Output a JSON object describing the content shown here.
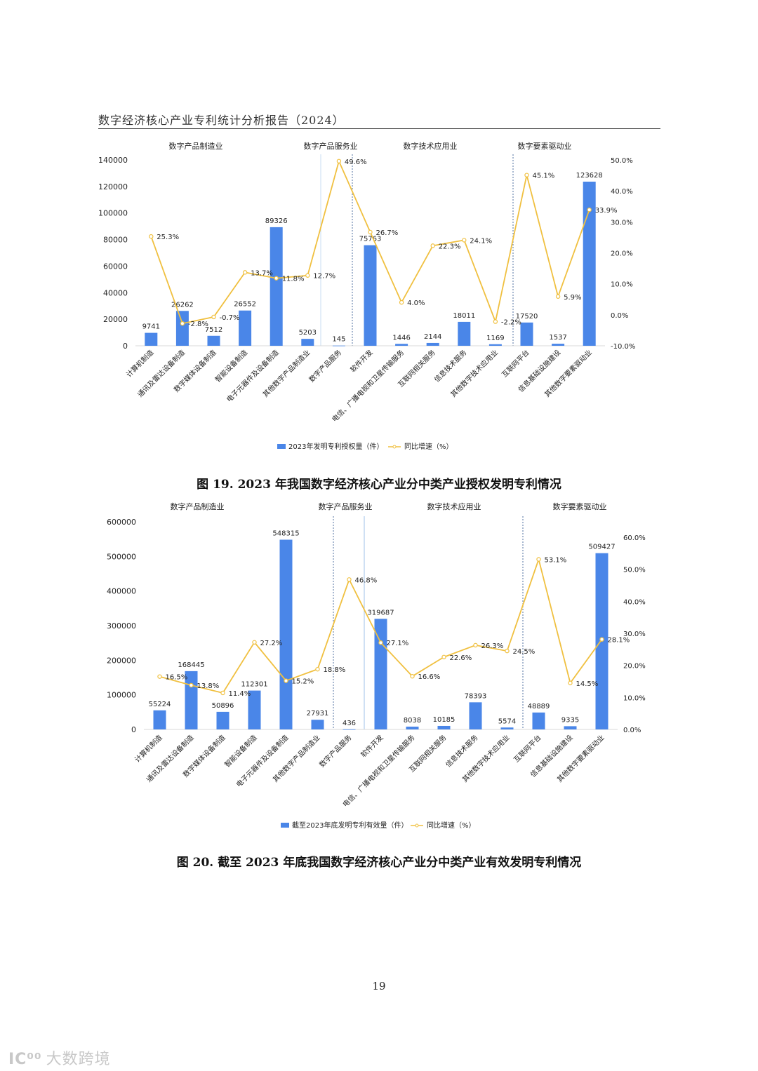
{
  "header": {
    "title": "数字经济核心产业专利统计分析报告（2024）"
  },
  "page_number": "19",
  "watermark": {
    "logo": "IC⁰⁰",
    "text": "大数跨境"
  },
  "colors": {
    "bar": "#4a86e8",
    "line": "#f0c040",
    "marker_fill": "#ffffff",
    "grid_sep": "#7f9fd0"
  },
  "chart_data": [
    {
      "type": "bar",
      "caption": "图 19. 2023 年我国数字经济核心产业分中类产业授权发明专利情况",
      "groups": [
        "数字产品制造业",
        "数字产品服务业",
        "数字技术应用业",
        "数字要素驱动业"
      ],
      "categories": [
        "计算机制造",
        "通讯及雷达设备制造",
        "数字媒体设备制造",
        "智能设备制造",
        "电子元器件及设备制造",
        "其他数字产品制造业",
        "数字产品服务",
        "软件开发",
        "电信、广播电视和卫星传输服务",
        "互联网相关服务",
        "信息技术服务",
        "其他数字技术应用业",
        "互联网平台",
        "信息基础设施建设",
        "其他数字要素驱动业"
      ],
      "series": [
        {
          "name": "2023年发明专利授权量（件）",
          "type": "bar",
          "axis": "left",
          "values": [
            9741,
            26262,
            7512,
            26552,
            89326,
            5203,
            145,
            75763,
            1446,
            2144,
            18011,
            1169,
            17520,
            1537,
            123628
          ],
          "labels": [
            "9741",
            "26262",
            "7512",
            "26552",
            "89326",
            "5203",
            "145",
            "75763",
            "1446",
            "2144",
            "18011",
            "1169",
            "17520",
            "1537",
            "123628"
          ]
        },
        {
          "name": "同比增速（%）",
          "type": "line",
          "axis": "right",
          "values": [
            25.3,
            -2.8,
            -0.7,
            13.7,
            11.8,
            12.7,
            49.6,
            26.7,
            4.0,
            22.3,
            24.1,
            -2.2,
            45.1,
            5.9,
            33.9
          ],
          "labels": [
            "25.3%",
            "-2.8%",
            "-0.7%",
            "13.7%",
            "11.8%",
            "12.7%",
            "49.6%",
            "26.7%",
            "4.0%",
            "22.3%",
            "24.1%",
            "-2.2%",
            "45.1%",
            "5.9%",
            "33.9%"
          ]
        }
      ],
      "left_axis": {
        "min": 0,
        "max": 140000,
        "ticks": [
          "0",
          "20000",
          "40000",
          "60000",
          "80000",
          "100000",
          "120000",
          "140000"
        ]
      },
      "right_axis": {
        "min": -10,
        "max": 50,
        "ticks": [
          "-10.0%",
          "0.0%",
          "10.0%",
          "20.0%",
          "30.0%",
          "40.0%",
          "50.0%"
        ]
      },
      "legend_position": "bottom"
    },
    {
      "type": "bar",
      "caption": "图 20. 截至 2023 年底我国数字经济核心产业分中类产业有效发明专利情况",
      "groups": [
        "数字产品制造业",
        "数字产品服务业",
        "数字技术应用业",
        "数字要素驱动业"
      ],
      "categories": [
        "计算机制造",
        "通讯及雷达设备制造",
        "数字媒体设备制造",
        "智能设备制造",
        "电子元器件及设备制造",
        "其他数字产品制造业",
        "数字产品服务",
        "软件开发",
        "电信、广播电视和卫星传输服务",
        "互联网相关服务",
        "信息技术服务",
        "其他数字技术应用业",
        "互联网平台",
        "信息基础设施建设",
        "其他数字要素驱动业"
      ],
      "series": [
        {
          "name": "截至2023年底发明专利有效量（件）",
          "type": "bar",
          "axis": "left",
          "values": [
            55224,
            168445,
            50896,
            112301,
            548315,
            27931,
            436,
            319687,
            8038,
            10185,
            78393,
            5574,
            48889,
            9335,
            509427
          ],
          "labels": [
            "55224",
            "168445",
            "50896",
            "112301",
            "548315",
            "27931",
            "436",
            "319687",
            "8038",
            "10185",
            "78393",
            "5574",
            "48889",
            "9335",
            "509427"
          ]
        },
        {
          "name": "同比增速（%）",
          "type": "line",
          "axis": "right",
          "values": [
            16.5,
            13.8,
            11.4,
            27.2,
            15.2,
            18.8,
            46.8,
            27.1,
            16.6,
            22.6,
            26.3,
            24.5,
            53.1,
            14.5,
            28.1
          ],
          "labels": [
            "16.5%",
            "13.8%",
            "11.4%",
            "27.2%",
            "15.2%",
            "18.8%",
            "46.8%",
            "27.1%",
            "16.6%",
            "22.6%",
            "26.3%",
            "24.5%",
            "53.1%",
            "14.5%",
            "28.1%"
          ]
        }
      ],
      "left_axis": {
        "min": 0,
        "max": 600000,
        "ticks": [
          "0",
          "100000",
          "200000",
          "300000",
          "400000",
          "500000",
          "600000"
        ]
      },
      "right_axis": {
        "min": 0,
        "max": 60,
        "ticks": [
          "0.0%",
          "10.0%",
          "20.0%",
          "30.0%",
          "40.0%",
          "50.0%",
          "60.0%"
        ]
      },
      "legend_position": "bottom"
    }
  ]
}
